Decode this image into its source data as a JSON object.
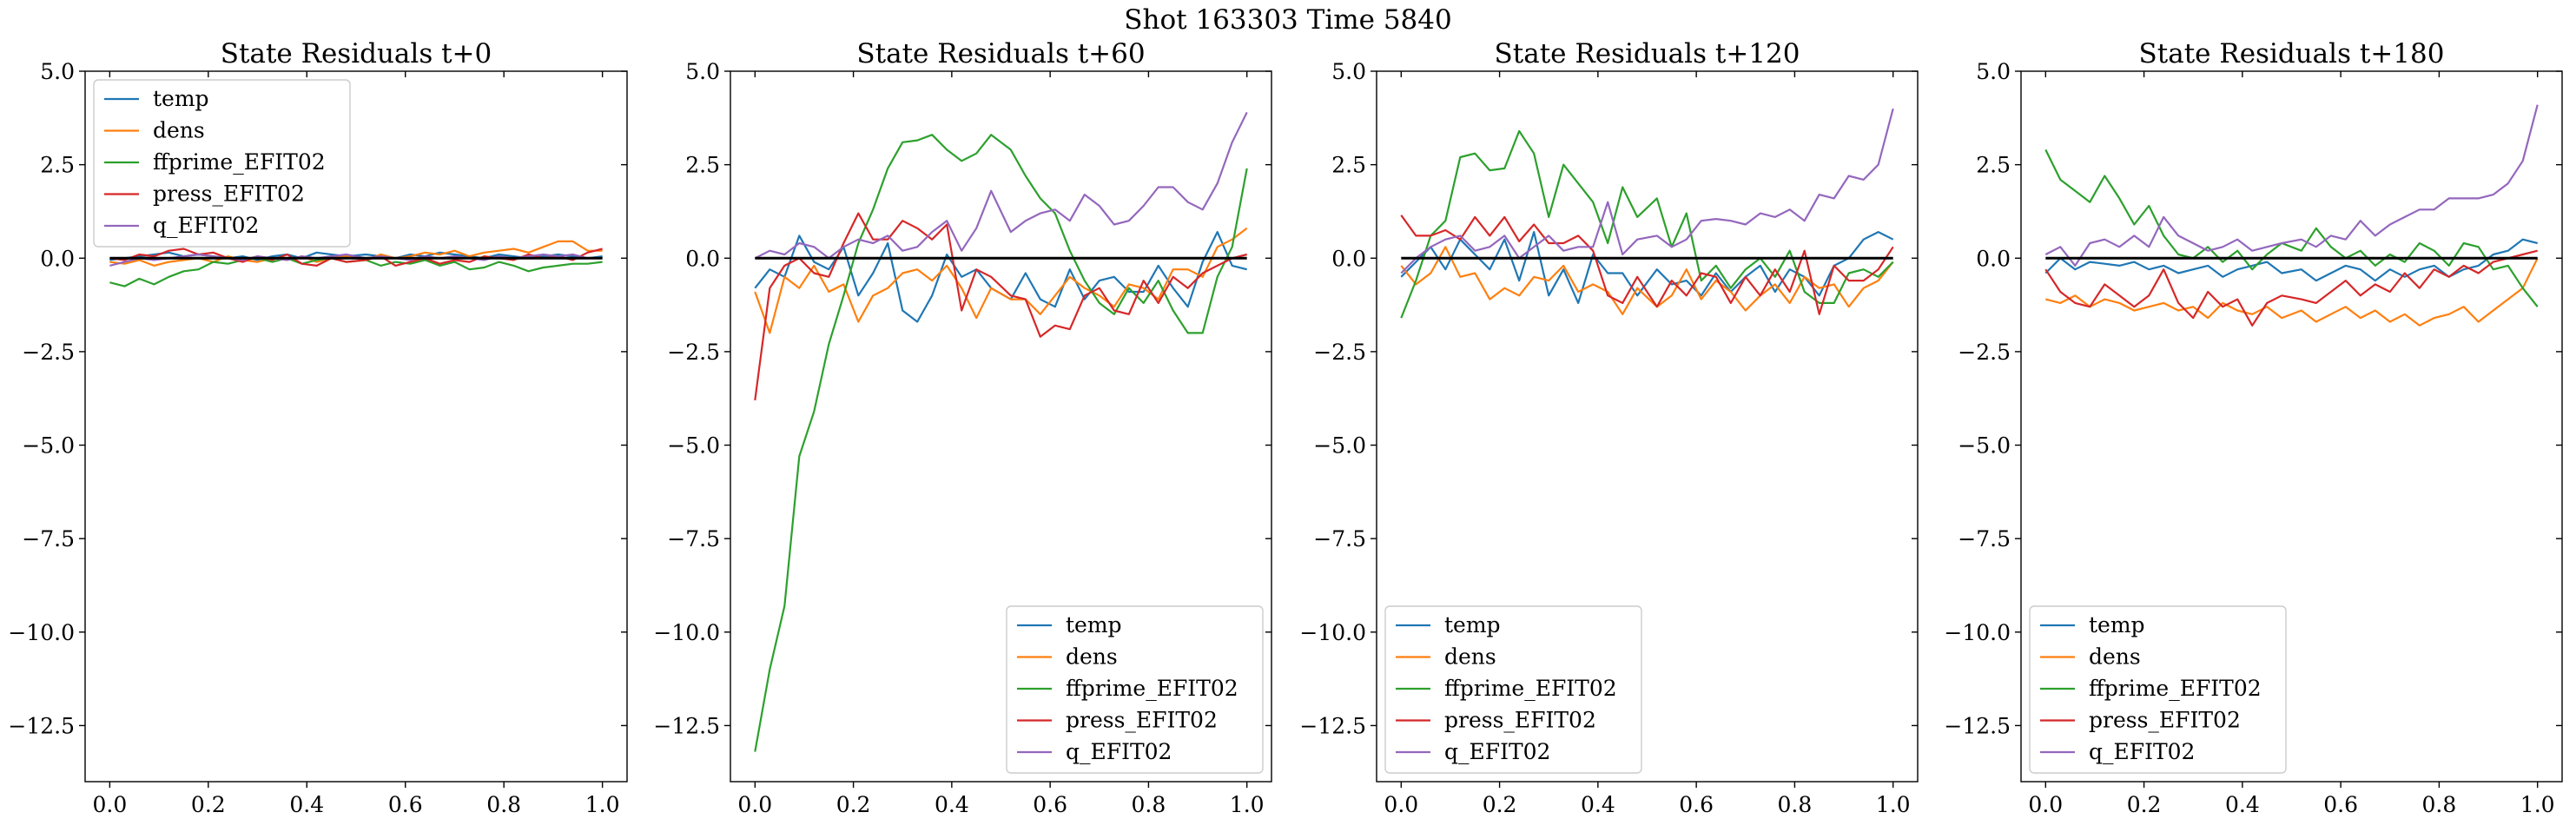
{
  "figure_title": "Shot 163303   Time 5840",
  "colors": {
    "temp": "#1f77b4",
    "dens": "#ff7f0e",
    "ffprime_EFIT02": "#2ca02c",
    "press_EFIT02": "#d62728",
    "q_EFIT02": "#9467bd",
    "zero_line": "#000000"
  },
  "chart_data": [
    {
      "type": "line",
      "title": "State Residuals t+0",
      "xlabel": "",
      "ylabel": "",
      "xlim": [
        -0.05,
        1.05
      ],
      "ylim": [
        -14.0,
        5.0
      ],
      "xticks": [
        0.0,
        0.2,
        0.4,
        0.6,
        0.8,
        1.0
      ],
      "xtick_labels": [
        "0.0",
        "0.2",
        "0.4",
        "0.6",
        "0.8",
        "1.0"
      ],
      "yticks": [
        5.0,
        2.5,
        0.0,
        -2.5,
        -5.0,
        -7.5,
        -10.0,
        -12.5
      ],
      "ytick_labels": [
        "5.0",
        "2.5",
        "0.0",
        "−2.5",
        "−5.0",
        "−7.5",
        "−10.0",
        "−12.5"
      ],
      "grid": false,
      "legend": "upper-left",
      "x": [
        0.0,
        0.03,
        0.06,
        0.09,
        0.12,
        0.15,
        0.18,
        0.21,
        0.24,
        0.27,
        0.3,
        0.33,
        0.36,
        0.39,
        0.42,
        0.45,
        0.48,
        0.52,
        0.55,
        0.58,
        0.61,
        0.64,
        0.67,
        0.7,
        0.73,
        0.76,
        0.79,
        0.82,
        0.85,
        0.88,
        0.91,
        0.94,
        0.97,
        1.0
      ],
      "series": [
        {
          "name": "temp",
          "values": [
            -0.05,
            0.0,
            0.05,
            0.1,
            0.15,
            0.05,
            0.1,
            0.05,
            0.0,
            0.05,
            -0.05,
            0.05,
            0.1,
            0.0,
            0.15,
            0.1,
            0.05,
            0.1,
            0.05,
            0.0,
            0.1,
            0.05,
            0.15,
            0.1,
            0.05,
            0.0,
            0.1,
            0.05,
            0.0,
            0.05,
            0.1,
            0.05,
            0.0,
            0.05
          ]
        },
        {
          "name": "dens",
          "values": [
            -0.1,
            -0.15,
            -0.05,
            -0.2,
            -0.1,
            -0.05,
            0.0,
            -0.1,
            0.05,
            -0.05,
            -0.1,
            0.0,
            -0.05,
            0.05,
            -0.1,
            0.0,
            0.05,
            -0.05,
            0.1,
            0.0,
            0.05,
            0.15,
            0.1,
            0.2,
            0.05,
            0.15,
            0.2,
            0.25,
            0.15,
            0.3,
            0.45,
            0.45,
            0.2,
            0.2
          ]
        },
        {
          "name": "ffprime_EFIT02",
          "values": [
            -0.65,
            -0.75,
            -0.55,
            -0.7,
            -0.5,
            -0.35,
            -0.3,
            -0.1,
            -0.15,
            -0.05,
            0.0,
            -0.1,
            0.0,
            -0.15,
            -0.05,
            0.0,
            -0.1,
            -0.05,
            -0.2,
            -0.1,
            -0.15,
            -0.05,
            -0.2,
            -0.1,
            -0.3,
            -0.25,
            -0.1,
            -0.2,
            -0.35,
            -0.25,
            -0.2,
            -0.15,
            -0.15,
            -0.1
          ]
        },
        {
          "name": "press_EFIT02",
          "values": [
            0.0,
            -0.05,
            0.1,
            0.05,
            0.2,
            0.25,
            0.1,
            0.15,
            0.0,
            -0.1,
            0.05,
            -0.05,
            0.1,
            -0.15,
            -0.2,
            0.0,
            -0.1,
            -0.05,
            0.05,
            -0.2,
            -0.1,
            0.0,
            -0.15,
            -0.05,
            -0.1,
            0.05,
            0.0,
            -0.05,
            0.1,
            0.0,
            0.05,
            -0.05,
            0.15,
            0.25
          ]
        },
        {
          "name": "q_EFIT02",
          "values": [
            -0.2,
            -0.1,
            0.0,
            -0.05,
            0.0,
            0.05,
            0.1,
            0.05,
            0.0,
            -0.05,
            0.05,
            0.0,
            -0.05,
            0.05,
            0.0,
            0.05,
            0.1,
            0.0,
            0.05,
            0.0,
            -0.05,
            0.05,
            0.0,
            0.05,
            0.0,
            -0.05,
            0.05,
            0.0,
            0.05,
            0.1,
            0.05,
            0.1,
            0.0,
            0.0
          ]
        }
      ]
    },
    {
      "type": "line",
      "title": "State Residuals t+60",
      "xlabel": "",
      "ylabel": "",
      "xlim": [
        -0.05,
        1.05
      ],
      "ylim": [
        -14.0,
        5.0
      ],
      "xticks": [
        0.0,
        0.2,
        0.4,
        0.6,
        0.8,
        1.0
      ],
      "xtick_labels": [
        "0.0",
        "0.2",
        "0.4",
        "0.6",
        "0.8",
        "1.0"
      ],
      "yticks": [
        5.0,
        2.5,
        0.0,
        -2.5,
        -5.0,
        -7.5,
        -10.0,
        -12.5
      ],
      "ytick_labels": [
        "5.0",
        "2.5",
        "0.0",
        "−2.5",
        "−5.0",
        "−7.5",
        "−10.0",
        "−12.5"
      ],
      "grid": false,
      "legend": "lower-right",
      "x": [
        0.0,
        0.03,
        0.06,
        0.09,
        0.12,
        0.15,
        0.18,
        0.21,
        0.24,
        0.27,
        0.3,
        0.33,
        0.36,
        0.39,
        0.42,
        0.45,
        0.48,
        0.52,
        0.55,
        0.58,
        0.61,
        0.64,
        0.67,
        0.7,
        0.73,
        0.76,
        0.79,
        0.82,
        0.85,
        0.88,
        0.91,
        0.94,
        0.97,
        1.0
      ],
      "series": [
        {
          "name": "temp",
          "values": [
            -0.8,
            -0.3,
            -0.5,
            0.6,
            -0.1,
            -0.3,
            0.3,
            -1.0,
            -0.4,
            0.4,
            -1.4,
            -1.7,
            -1.0,
            0.1,
            -0.5,
            -0.3,
            -0.8,
            -1.1,
            -0.4,
            -1.1,
            -1.3,
            -0.3,
            -1.1,
            -0.6,
            -0.5,
            -0.9,
            -0.9,
            -0.2,
            -0.8,
            -1.3,
            -0.1,
            0.7,
            -0.2,
            -0.3
          ]
        },
        {
          "name": "dens",
          "values": [
            -0.9,
            -2.0,
            -0.5,
            -0.8,
            -0.2,
            -0.9,
            -0.7,
            -1.7,
            -1.0,
            -0.8,
            -0.4,
            -0.3,
            -0.6,
            -0.2,
            -0.8,
            -1.6,
            -0.8,
            -1.1,
            -1.1,
            -1.5,
            -1.0,
            -0.5,
            -0.8,
            -1.0,
            -1.3,
            -0.7,
            -0.8,
            -1.1,
            -0.3,
            -0.3,
            -0.5,
            0.3,
            0.5,
            0.8
          ]
        },
        {
          "name": "ffprime_EFIT02",
          "values": [
            -13.2,
            -11.0,
            -9.3,
            -5.3,
            -4.1,
            -2.3,
            -1.0,
            0.4,
            1.3,
            2.4,
            3.1,
            3.15,
            3.3,
            2.9,
            2.6,
            2.8,
            3.3,
            2.9,
            2.2,
            1.6,
            1.2,
            0.2,
            -0.6,
            -1.2,
            -1.5,
            -0.8,
            -1.2,
            -0.6,
            -1.4,
            -2.0,
            -2.0,
            -0.5,
            0.3,
            2.4
          ]
        },
        {
          "name": "press_EFIT02",
          "values": [
            -3.8,
            -0.8,
            -0.2,
            0.0,
            -0.4,
            -0.5,
            0.4,
            1.2,
            0.5,
            0.5,
            1.0,
            0.8,
            0.5,
            0.9,
            -1.4,
            -0.3,
            -0.5,
            -1.0,
            -1.1,
            -2.1,
            -1.8,
            -1.9,
            -1.0,
            -0.8,
            -1.4,
            -1.5,
            -0.6,
            -1.2,
            -0.5,
            -0.8,
            -0.4,
            -0.2,
            0.0,
            0.1
          ]
        },
        {
          "name": "q_EFIT02",
          "values": [
            0.0,
            0.2,
            0.1,
            0.4,
            0.3,
            0.0,
            0.3,
            0.5,
            0.4,
            0.6,
            0.2,
            0.3,
            0.7,
            1.0,
            0.2,
            0.8,
            1.8,
            0.7,
            1.0,
            1.2,
            1.3,
            1.0,
            1.7,
            1.4,
            0.9,
            1.0,
            1.4,
            1.9,
            1.9,
            1.5,
            1.3,
            2.0,
            3.1,
            3.9
          ]
        }
      ]
    },
    {
      "type": "line",
      "title": "State Residuals t+120",
      "xlabel": "",
      "ylabel": "",
      "xlim": [
        -0.05,
        1.05
      ],
      "ylim": [
        -14.0,
        5.0
      ],
      "xticks": [
        0.0,
        0.2,
        0.4,
        0.6,
        0.8,
        1.0
      ],
      "xtick_labels": [
        "0.0",
        "0.2",
        "0.4",
        "0.6",
        "0.8",
        "1.0"
      ],
      "yticks": [
        5.0,
        2.5,
        0.0,
        -2.5,
        -5.0,
        -7.5,
        -10.0,
        -12.5
      ],
      "ytick_labels": [
        "5.0",
        "2.5",
        "0.0",
        "−2.5",
        "−5.0",
        "−7.5",
        "−10.0",
        "−12.5"
      ],
      "grid": false,
      "legend": "lower-left",
      "x": [
        0.0,
        0.03,
        0.06,
        0.09,
        0.12,
        0.15,
        0.18,
        0.21,
        0.24,
        0.27,
        0.3,
        0.33,
        0.36,
        0.39,
        0.42,
        0.45,
        0.48,
        0.52,
        0.55,
        0.58,
        0.61,
        0.64,
        0.67,
        0.7,
        0.73,
        0.76,
        0.79,
        0.82,
        0.85,
        0.88,
        0.91,
        0.94,
        0.97,
        1.0
      ],
      "series": [
        {
          "name": "temp",
          "values": [
            -0.5,
            -0.1,
            0.3,
            -0.3,
            0.5,
            0.1,
            -0.3,
            0.5,
            -0.6,
            0.7,
            -1.0,
            -0.3,
            -1.2,
            0.1,
            -0.4,
            -0.4,
            -1.0,
            -0.3,
            -0.7,
            -0.6,
            -1.0,
            -0.4,
            -0.9,
            -0.5,
            -0.2,
            -0.9,
            -0.3,
            -0.5,
            -1.0,
            -0.2,
            0.0,
            0.5,
            0.7,
            0.5
          ]
        },
        {
          "name": "dens",
          "values": [
            -0.2,
            -0.7,
            -0.4,
            0.3,
            -0.5,
            -0.4,
            -1.1,
            -0.8,
            -1.0,
            -0.5,
            -0.6,
            -0.2,
            -0.9,
            -0.7,
            -0.9,
            -1.5,
            -0.8,
            -1.3,
            -1.0,
            -0.3,
            -1.1,
            -0.6,
            -0.9,
            -1.4,
            -1.0,
            -0.7,
            -1.2,
            -0.5,
            -0.8,
            -0.7,
            -1.3,
            -0.8,
            -0.6,
            -0.1
          ]
        },
        {
          "name": "ffprime_EFIT02",
          "values": [
            -1.6,
            -0.6,
            0.6,
            1.0,
            2.7,
            2.8,
            2.35,
            2.4,
            3.4,
            2.8,
            1.1,
            2.5,
            2.0,
            1.5,
            0.4,
            1.9,
            1.1,
            1.6,
            0.3,
            1.2,
            -0.6,
            -0.2,
            -0.8,
            -0.3,
            0.0,
            -0.5,
            0.2,
            -0.9,
            -1.2,
            -1.2,
            -0.4,
            -0.3,
            -0.5,
            -0.1
          ]
        },
        {
          "name": "press_EFIT02",
          "values": [
            1.15,
            0.6,
            0.6,
            0.75,
            0.5,
            1.1,
            0.6,
            1.1,
            0.45,
            0.9,
            0.4,
            0.4,
            0.6,
            0.2,
            -1.0,
            -1.2,
            -0.5,
            -1.3,
            -0.6,
            -1.0,
            -0.4,
            -0.5,
            -1.2,
            -0.5,
            -1.0,
            -0.3,
            -0.9,
            0.2,
            -1.5,
            -0.2,
            -0.6,
            -0.6,
            -0.3,
            0.3
          ]
        },
        {
          "name": "q_EFIT02",
          "values": [
            -0.4,
            0.0,
            0.3,
            0.5,
            0.6,
            0.2,
            0.3,
            0.6,
            0.0,
            0.3,
            0.6,
            0.2,
            0.3,
            0.3,
            1.5,
            0.1,
            0.5,
            0.6,
            0.3,
            0.5,
            1.0,
            1.05,
            1.0,
            0.9,
            1.2,
            1.1,
            1.3,
            1.0,
            1.7,
            1.6,
            2.2,
            2.1,
            2.5,
            4.0
          ]
        }
      ]
    },
    {
      "type": "line",
      "title": "State Residuals t+180",
      "xlabel": "",
      "ylabel": "",
      "xlim": [
        -0.05,
        1.05
      ],
      "ylim": [
        -14.0,
        5.0
      ],
      "xticks": [
        0.0,
        0.2,
        0.4,
        0.6,
        0.8,
        1.0
      ],
      "xtick_labels": [
        "0.0",
        "0.2",
        "0.4",
        "0.6",
        "0.8",
        "1.0"
      ],
      "yticks": [
        5.0,
        2.5,
        0.0,
        -2.5,
        -5.0,
        -7.5,
        -10.0,
        -12.5
      ],
      "ytick_labels": [
        "5.0",
        "2.5",
        "0.0",
        "−2.5",
        "−5.0",
        "−7.5",
        "−10.0",
        "−12.5"
      ],
      "grid": false,
      "legend": "lower-left",
      "x": [
        0.0,
        0.03,
        0.06,
        0.09,
        0.12,
        0.15,
        0.18,
        0.21,
        0.24,
        0.27,
        0.3,
        0.33,
        0.36,
        0.39,
        0.42,
        0.45,
        0.48,
        0.52,
        0.55,
        0.58,
        0.61,
        0.64,
        0.67,
        0.7,
        0.73,
        0.76,
        0.79,
        0.82,
        0.85,
        0.88,
        0.91,
        0.94,
        0.97,
        1.0
      ],
      "series": [
        {
          "name": "temp",
          "values": [
            -0.4,
            0.0,
            -0.3,
            -0.1,
            -0.15,
            -0.2,
            -0.1,
            -0.3,
            -0.2,
            -0.4,
            -0.3,
            -0.2,
            -0.5,
            -0.3,
            -0.2,
            -0.1,
            -0.4,
            -0.3,
            -0.6,
            -0.4,
            -0.2,
            -0.3,
            -0.6,
            -0.3,
            -0.5,
            -0.3,
            -0.2,
            -0.5,
            -0.3,
            -0.2,
            0.1,
            0.2,
            0.5,
            0.4
          ]
        },
        {
          "name": "dens",
          "values": [
            -1.1,
            -1.2,
            -1.0,
            -1.3,
            -1.1,
            -1.2,
            -1.4,
            -1.3,
            -1.2,
            -1.4,
            -1.3,
            -1.6,
            -1.2,
            -1.4,
            -1.5,
            -1.3,
            -1.6,
            -1.4,
            -1.7,
            -1.5,
            -1.3,
            -1.6,
            -1.4,
            -1.7,
            -1.5,
            -1.8,
            -1.6,
            -1.5,
            -1.3,
            -1.7,
            -1.4,
            -1.1,
            -0.8,
            0.0
          ]
        },
        {
          "name": "ffprime_EFIT02",
          "values": [
            2.9,
            2.1,
            1.8,
            1.5,
            2.2,
            1.6,
            0.9,
            1.4,
            0.6,
            0.1,
            0.0,
            0.3,
            -0.1,
            0.2,
            -0.3,
            0.1,
            0.4,
            0.2,
            0.8,
            0.3,
            0.0,
            0.2,
            -0.2,
            0.1,
            -0.1,
            0.4,
            0.2,
            -0.2,
            0.4,
            0.3,
            -0.3,
            -0.2,
            -0.8,
            -1.3
          ]
        },
        {
          "name": "press_EFIT02",
          "values": [
            -0.3,
            -0.9,
            -1.2,
            -1.3,
            -0.7,
            -1.0,
            -1.3,
            -1.0,
            -0.3,
            -1.2,
            -1.6,
            -0.9,
            -1.3,
            -1.1,
            -1.8,
            -1.2,
            -1.0,
            -1.1,
            -1.2,
            -0.9,
            -0.6,
            -1.0,
            -0.7,
            -0.9,
            -0.4,
            -0.8,
            -0.3,
            -0.5,
            -0.2,
            -0.4,
            -0.1,
            0.0,
            0.1,
            0.2
          ]
        },
        {
          "name": "q_EFIT02",
          "values": [
            0.1,
            0.3,
            -0.2,
            0.4,
            0.5,
            0.3,
            0.6,
            0.3,
            1.1,
            0.6,
            0.4,
            0.2,
            0.3,
            0.5,
            0.2,
            0.3,
            0.4,
            0.5,
            0.3,
            0.6,
            0.5,
            1.0,
            0.6,
            0.9,
            1.1,
            1.3,
            1.3,
            1.6,
            1.6,
            1.6,
            1.7,
            2.0,
            2.6,
            4.1
          ]
        }
      ]
    }
  ]
}
